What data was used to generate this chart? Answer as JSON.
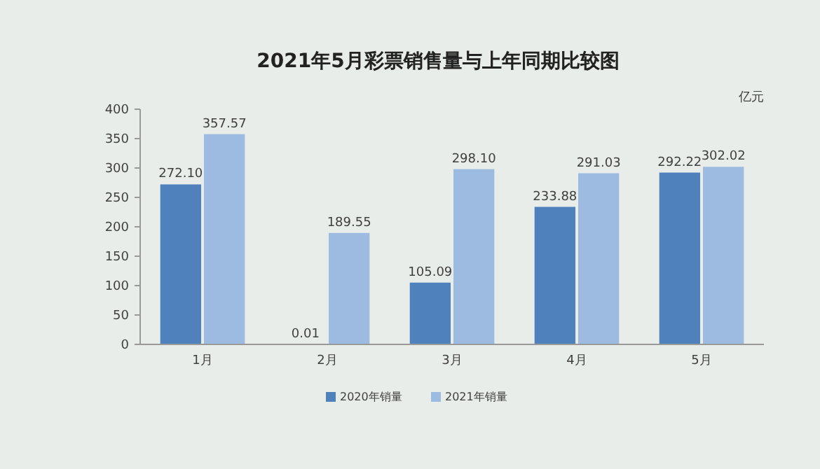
{
  "chart_data": {
    "type": "bar",
    "title": "2021年5月彩票销售量与上年同期比较图",
    "ylabel": "亿元",
    "categories": [
      "1月",
      "2月",
      "3月",
      "4月",
      "5月"
    ],
    "series": [
      {
        "name": "2020年销量",
        "color": "#4f81bd",
        "values": [
          272.1,
          0.01,
          105.09,
          233.88,
          292.22
        ],
        "value_labels": [
          "272.10",
          "0.01",
          "105.09",
          "233.88",
          "292.22"
        ]
      },
      {
        "name": "2021年销量",
        "color": "#9dbbe0",
        "values": [
          357.57,
          189.55,
          298.1,
          291.03,
          302.02
        ],
        "value_labels": [
          "357.57",
          "189.55",
          "298.10",
          "291.03",
          "302.02"
        ]
      }
    ],
    "ylim": [
      0,
      400
    ],
    "yticks": [
      0,
      50,
      100,
      150,
      200,
      250,
      300,
      350,
      400
    ],
    "grid": false,
    "legend": "bottom"
  }
}
